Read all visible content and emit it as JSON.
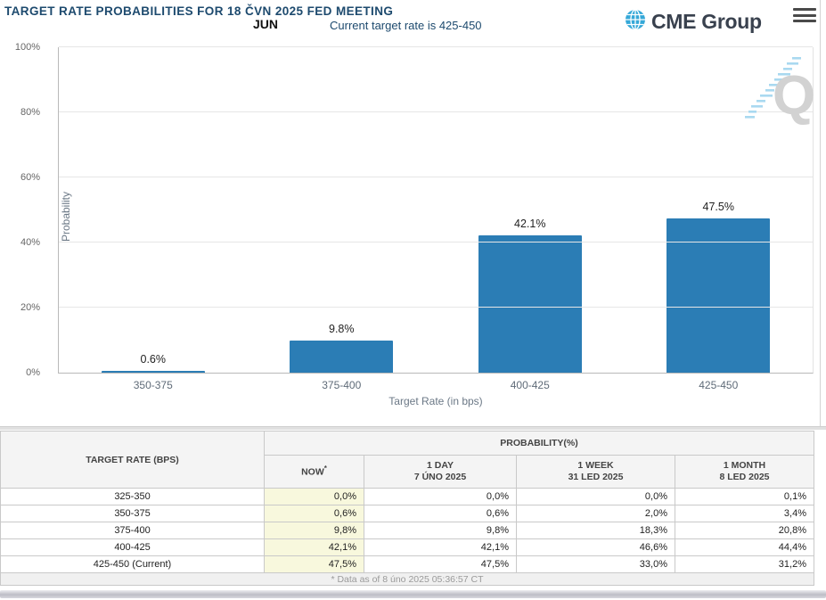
{
  "header": {
    "title": "TARGET RATE PROBABILITIES FOR 18 ČVN 2025 FED MEETING",
    "month_label": "JUN",
    "subtitle": "Current target rate is 425-450",
    "logo_text": "CME Group",
    "menu_icon": "hamburger-icon",
    "globe_icon": "globe-icon",
    "watermark_icon": "quikstrike-q-watermark"
  },
  "chart_data": {
    "type": "bar",
    "title": "TARGET RATE PROBABILITIES FOR 18 ČVN 2025 FED MEETING",
    "categories": [
      "350-375",
      "375-400",
      "400-425",
      "425-450"
    ],
    "values": [
      0.6,
      9.8,
      42.1,
      47.5
    ],
    "value_labels": [
      "0.6%",
      "9.8%",
      "42.1%",
      "47.5%"
    ],
    "xlabel": "Target Rate (in bps)",
    "ylabel": "Probability",
    "ylim": [
      0,
      100
    ],
    "yticks": [
      0,
      20,
      40,
      60,
      80,
      100
    ],
    "ytick_labels": [
      "0%",
      "20%",
      "40%",
      "60%",
      "80%",
      "100%"
    ],
    "bar_color": "#2b7db5",
    "grid": true,
    "legend": "none"
  },
  "table": {
    "col1_header": "TARGET RATE (BPS)",
    "group_header": "PROBABILITY(%)",
    "sub_headers": [
      {
        "line1": "NOW",
        "sup": "*",
        "line2": ""
      },
      {
        "line1": "1 DAY",
        "sup": "",
        "line2": "7 ÚNO 2025"
      },
      {
        "line1": "1 WEEK",
        "sup": "",
        "line2": "31 LED 2025"
      },
      {
        "line1": "1 MONTH",
        "sup": "",
        "line2": "8 LED 2025"
      }
    ],
    "rows": [
      {
        "label": "325-350",
        "values": [
          "0,0%",
          "0,0%",
          "0,0%",
          "0,1%"
        ]
      },
      {
        "label": "350-375",
        "values": [
          "0,6%",
          "0,6%",
          "2,0%",
          "3,4%"
        ]
      },
      {
        "label": "375-400",
        "values": [
          "9,8%",
          "9,8%",
          "18,3%",
          "20,8%"
        ]
      },
      {
        "label": "400-425",
        "values": [
          "42,1%",
          "42,1%",
          "46,6%",
          "44,4%"
        ]
      },
      {
        "label": "425-450 (Current)",
        "values": [
          "47,5%",
          "47,5%",
          "33,0%",
          "31,2%"
        ]
      }
    ],
    "footnote": "* Data as of 8 úno 2025 05:36:57 CT"
  },
  "colors": {
    "accent_navy": "#1d4a6e",
    "bar_blue": "#2b7db5",
    "now_column_bg": "#f8f8dd",
    "header_bg": "#f4f4f4",
    "logo_globe_blue": "#35a8d8",
    "watermark_gray": "#d2d2d2",
    "watermark_blue": "#a9d9f0"
  }
}
